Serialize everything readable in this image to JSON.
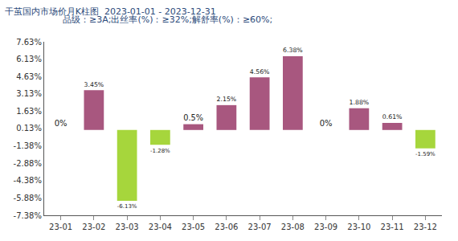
{
  "chart_data": {
    "type": "bar",
    "title": "干茧国内市场价月K柱图  2023-01-01 - 2023-12-31",
    "subtitle": "品级：≥3A;出丝率(%)：≥32%;解舒率(%)：≥60%;",
    "categories": [
      "23-01",
      "23-02",
      "23-03",
      "23-04",
      "23-05",
      "23-06",
      "23-07",
      "23-08",
      "23-09",
      "23-10",
      "23-11",
      "23-12"
    ],
    "values": [
      0,
      3.45,
      -6.13,
      -1.28,
      0.5,
      2.15,
      4.56,
      6.38,
      0,
      1.88,
      0.61,
      -1.59
    ],
    "value_labels": [
      "0%",
      "3.45%",
      "-6.13%",
      "-1.28%",
      "0.5%",
      "2.15%",
      "4.56%",
      "6.38%",
      "0%",
      "1.88%",
      "0.61%",
      "-1.59%"
    ],
    "colors": [
      "#a8577f",
      "#a8577f",
      "#a6d63c",
      "#a6d63c",
      "#a8577f",
      "#a8577f",
      "#a8577f",
      "#a8577f",
      "#a8577f",
      "#a8577f",
      "#a8577f",
      "#a6d63c"
    ],
    "ylim": [
      -7.38,
      7.63
    ],
    "yticks": [
      {
        "value": 7.63,
        "label": "7.63%"
      },
      {
        "value": 6.13,
        "label": "6.13%"
      },
      {
        "value": 4.63,
        "label": "4.63%"
      },
      {
        "value": 3.13,
        "label": "3.13%"
      },
      {
        "value": 1.63,
        "label": "1.63%"
      },
      {
        "value": 0.13,
        "label": "0.13%"
      },
      {
        "value": -1.38,
        "label": "-1.38%"
      },
      {
        "value": -2.88,
        "label": "-2.88%"
      },
      {
        "value": -4.38,
        "label": "-4.38%"
      },
      {
        "value": -5.88,
        "label": "-5.88%"
      },
      {
        "value": -7.38,
        "label": "-7.38%"
      }
    ],
    "grid": false,
    "data_labels": true
  }
}
